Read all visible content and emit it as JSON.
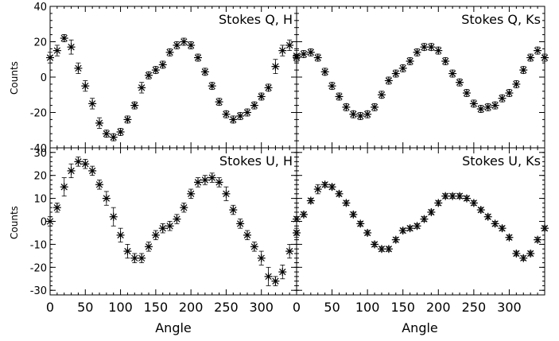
{
  "figure": {
    "x_label": "Angle",
    "y_label": "Counts"
  },
  "chart_data": [
    {
      "type": "scatter",
      "panel": "top-left",
      "title": "Stokes Q, H",
      "xlabel": "",
      "ylabel": "Counts",
      "xlim": [
        0,
        350
      ],
      "ylim": [
        -40,
        40
      ],
      "x_ticks": [
        0,
        50,
        100,
        150,
        200,
        250,
        300
      ],
      "y_ticks": [
        -40,
        -20,
        0,
        20,
        40
      ],
      "y_tick_labels_shown": [
        "-40",
        "-20",
        "0",
        "20",
        "40"
      ],
      "x_tick_labels_shown": [],
      "series": [
        {
          "x": [
            0,
            10,
            20,
            30,
            40,
            50,
            60,
            70,
            80,
            90,
            100,
            110,
            120,
            130,
            140,
            150,
            160,
            170,
            180,
            190,
            200,
            210,
            220,
            230,
            240,
            250,
            260,
            270,
            280,
            290,
            300,
            310,
            320,
            330,
            340,
            350
          ],
          "y": [
            11,
            15,
            22,
            17,
            5,
            -5,
            -15,
            -26,
            -32,
            -34,
            -31,
            -24,
            -16,
            -6,
            1,
            4,
            7,
            14,
            18,
            20,
            18,
            11,
            3,
            -5,
            -14,
            -21,
            -24,
            -22,
            -20,
            -16,
            -11,
            -6,
            6,
            15,
            18,
            12
          ],
          "err": [
            3,
            3,
            2,
            4,
            3,
            3,
            3,
            3,
            2,
            2,
            2,
            2,
            2,
            3,
            2,
            2,
            2,
            2,
            2,
            2,
            2,
            2,
            2,
            2,
            2,
            2,
            2,
            2,
            2,
            2,
            2,
            2,
            4,
            3,
            3,
            3
          ]
        }
      ]
    },
    {
      "type": "scatter",
      "panel": "top-right",
      "title": "Stokes Q, Ks",
      "xlabel": "",
      "ylabel": "",
      "xlim": [
        0,
        350
      ],
      "ylim": [
        -40,
        40
      ],
      "x_ticks": [
        0,
        50,
        100,
        150,
        200,
        250,
        300
      ],
      "y_ticks": [
        -40,
        -20,
        0,
        20,
        40
      ],
      "series": [
        {
          "x": [
            0,
            10,
            20,
            30,
            40,
            50,
            60,
            70,
            80,
            90,
            100,
            110,
            120,
            130,
            140,
            150,
            160,
            170,
            180,
            190,
            200,
            210,
            220,
            230,
            240,
            250,
            260,
            270,
            280,
            290,
            300,
            310,
            320,
            330,
            340,
            350
          ],
          "y": [
            11,
            13,
            14,
            11,
            3,
            -5,
            -11,
            -17,
            -21,
            -22,
            -21,
            -17,
            -10,
            -2,
            2,
            5,
            9,
            14,
            17,
            17,
            15,
            9,
            2,
            -3,
            -9,
            -15,
            -18,
            -17,
            -16,
            -12,
            -9,
            -4,
            4,
            11,
            15,
            11
          ],
          "err": [
            2,
            2,
            2,
            2,
            2,
            2,
            2,
            2,
            2,
            2,
            2,
            2,
            2,
            2,
            2,
            2,
            2,
            2,
            2,
            2,
            2,
            2,
            2,
            2,
            2,
            2,
            2,
            2,
            2,
            2,
            2,
            2,
            2,
            2,
            2,
            2
          ]
        }
      ]
    },
    {
      "type": "scatter",
      "panel": "bottom-left",
      "title": "Stokes U, H",
      "xlabel": "Angle",
      "ylabel": "Counts",
      "xlim": [
        0,
        350
      ],
      "ylim": [
        -32,
        32
      ],
      "x_ticks": [
        0,
        50,
        100,
        150,
        200,
        250,
        300
      ],
      "x_tick_labels_shown": [
        "0",
        "50",
        "100",
        "150",
        "200",
        "250",
        "300"
      ],
      "y_ticks": [
        -30,
        -20,
        -10,
        0,
        10,
        20,
        30
      ],
      "y_tick_labels_shown": [
        "-30",
        "-20",
        "-10",
        "0",
        "10",
        "20",
        "30"
      ],
      "series": [
        {
          "x": [
            0,
            10,
            20,
            30,
            40,
            50,
            60,
            70,
            80,
            90,
            100,
            110,
            120,
            130,
            140,
            150,
            160,
            170,
            180,
            190,
            200,
            210,
            220,
            230,
            240,
            250,
            260,
            270,
            280,
            290,
            300,
            310,
            320,
            330,
            340,
            350
          ],
          "y": [
            0,
            6,
            15,
            22,
            26,
            25,
            22,
            16,
            10,
            2,
            -6,
            -13,
            -16,
            -16,
            -11,
            -6,
            -3,
            -2,
            1,
            6,
            12,
            17,
            18,
            19,
            17,
            12,
            5,
            -1,
            -6,
            -11,
            -16,
            -24,
            -26,
            -22,
            -13,
            -5
          ],
          "err": [
            2,
            2,
            4,
            3,
            2,
            2,
            2,
            2,
            3,
            4,
            3,
            3,
            2,
            2,
            2,
            2,
            2,
            2,
            2,
            2,
            2,
            2,
            2,
            2,
            2,
            3,
            2,
            2,
            2,
            2,
            3,
            4,
            2,
            3,
            3,
            2
          ]
        }
      ]
    },
    {
      "type": "scatter",
      "panel": "bottom-right",
      "title": "Stokes U, Ks",
      "xlabel": "Angle",
      "ylabel": "",
      "xlim": [
        0,
        350
      ],
      "ylim": [
        -32,
        32
      ],
      "x_ticks": [
        0,
        50,
        100,
        150,
        200,
        250,
        300
      ],
      "x_tick_labels_shown": [
        "0",
        "50",
        "100",
        "150",
        "200",
        "250",
        "300"
      ],
      "y_ticks": [
        -30,
        -20,
        -10,
        0,
        10,
        20,
        30
      ],
      "series": [
        {
          "x": [
            0,
            10,
            20,
            30,
            40,
            50,
            60,
            70,
            80,
            90,
            100,
            110,
            120,
            130,
            140,
            150,
            160,
            170,
            180,
            190,
            200,
            210,
            220,
            230,
            240,
            250,
            260,
            270,
            280,
            290,
            300,
            310,
            320,
            330,
            340,
            350
          ],
          "y": [
            1,
            3,
            9,
            14,
            16,
            15,
            12,
            8,
            3,
            -1,
            -5,
            -10,
            -12,
            -12,
            -8,
            -4,
            -3,
            -2,
            1,
            4,
            8,
            11,
            11,
            11,
            10,
            8,
            5,
            2,
            -1,
            -3,
            -7,
            -14,
            -16,
            -14,
            -8,
            -3
          ],
          "err": [
            1,
            1,
            1,
            2,
            1,
            1,
            1,
            1,
            1,
            1,
            1,
            1,
            1,
            1,
            1,
            1,
            1,
            1,
            1,
            1,
            1,
            1,
            1,
            1,
            1,
            1,
            1,
            1,
            1,
            1,
            1,
            1,
            1,
            1,
            1,
            1
          ]
        }
      ]
    }
  ]
}
